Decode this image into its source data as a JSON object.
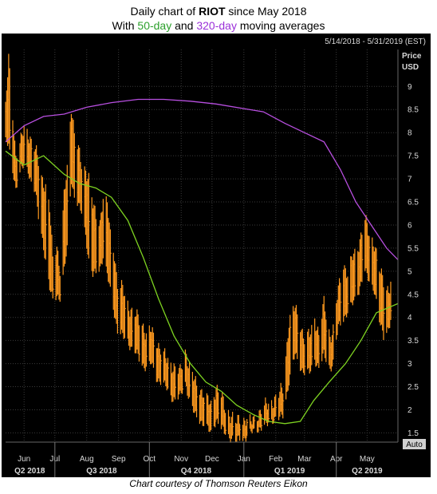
{
  "title": {
    "prefix": "Daily chart of ",
    "ticker": "RIOT",
    "suffix": " since May 2018",
    "line2_prefix": "With ",
    "ma_short": "50-day",
    "line2_mid": " and ",
    "ma_long": "320-day",
    "line2_suffix": " moving averages"
  },
  "header": {
    "date_range": "5/14/2018 - 5/31/2019 (EST)"
  },
  "axis": {
    "price_label": "Price",
    "currency_label": "USD",
    "auto_label": "Auto"
  },
  "credit": "Chart courtesy of Thomson Reuters Eikon",
  "colors": {
    "price": "#ff9a1f",
    "ma50": "#7ed321",
    "ma320": "#b84fe0",
    "background": "#000000",
    "grid": "#3a3a3a"
  },
  "chart_data": {
    "type": "line",
    "title": "Daily chart of RIOT since May 2018",
    "subtitle": "With 50-day and 320-day moving averages",
    "xlabel": "",
    "ylabel": "Price USD",
    "x_range": [
      "2018-05-14",
      "2019-05-31"
    ],
    "ylim": [
      1.3,
      9.8
    ],
    "y_ticks": [
      1.5,
      2,
      2.5,
      3,
      3.5,
      4,
      4.5,
      5,
      5.5,
      6,
      6.5,
      7,
      7.5,
      8,
      8.5,
      9
    ],
    "months": [
      {
        "label": "Jun",
        "date": "2018-06-01"
      },
      {
        "label": "Jul",
        "date": "2018-07-01"
      },
      {
        "label": "Aug",
        "date": "2018-08-01"
      },
      {
        "label": "Sep",
        "date": "2018-09-01"
      },
      {
        "label": "Oct",
        "date": "2018-10-01"
      },
      {
        "label": "Nov",
        "date": "2018-11-01"
      },
      {
        "label": "Dec",
        "date": "2018-12-01"
      },
      {
        "label": "Jan",
        "date": "2019-01-01"
      },
      {
        "label": "Feb",
        "date": "2019-02-01"
      },
      {
        "label": "Mar",
        "date": "2019-03-01"
      },
      {
        "label": "Apr",
        "date": "2019-04-01"
      },
      {
        "label": "May",
        "date": "2019-05-01"
      }
    ],
    "quarters": [
      {
        "label": "Q2 2018",
        "start": "2018-05-14",
        "end": "2018-06-30"
      },
      {
        "label": "Q3 2018",
        "start": "2018-07-01",
        "end": "2018-09-30"
      },
      {
        "label": "Q4 2018",
        "start": "2018-10-01",
        "end": "2018-12-31"
      },
      {
        "label": "Q1 2019",
        "start": "2019-01-01",
        "end": "2019-03-31"
      },
      {
        "label": "Q2 2019",
        "start": "2019-04-01",
        "end": "2019-05-31"
      }
    ],
    "grid": true,
    "series": [
      {
        "name": "RIOT",
        "style": "daily high-low bars",
        "x": [
          "2018-05-14",
          "2018-05-17",
          "2018-05-21",
          "2018-05-24",
          "2018-05-29",
          "2018-06-01",
          "2018-06-05",
          "2018-06-08",
          "2018-06-12",
          "2018-06-15",
          "2018-06-19",
          "2018-06-22",
          "2018-06-26",
          "2018-06-29",
          "2018-07-03",
          "2018-07-06",
          "2018-07-10",
          "2018-07-13",
          "2018-07-17",
          "2018-07-20",
          "2018-07-24",
          "2018-07-27",
          "2018-07-31",
          "2018-08-03",
          "2018-08-07",
          "2018-08-10",
          "2018-08-14",
          "2018-08-17",
          "2018-08-21",
          "2018-08-24",
          "2018-08-28",
          "2018-08-31",
          "2018-09-05",
          "2018-09-10",
          "2018-09-14",
          "2018-09-19",
          "2018-09-24",
          "2018-09-28",
          "2018-10-03",
          "2018-10-08",
          "2018-10-12",
          "2018-10-17",
          "2018-10-22",
          "2018-10-26",
          "2018-10-31",
          "2018-11-05",
          "2018-11-09",
          "2018-11-14",
          "2018-11-19",
          "2018-11-26",
          "2018-11-30",
          "2018-12-05",
          "2018-12-10",
          "2018-12-14",
          "2018-12-19",
          "2018-12-24",
          "2018-12-28",
          "2019-01-03",
          "2019-01-08",
          "2019-01-14",
          "2019-01-18",
          "2019-01-24",
          "2019-01-30",
          "2019-02-04",
          "2019-02-08",
          "2019-02-14",
          "2019-02-20",
          "2019-02-26",
          "2019-03-01",
          "2019-03-06",
          "2019-03-11",
          "2019-03-15",
          "2019-03-20",
          "2019-03-26",
          "2019-03-29",
          "2019-04-03",
          "2019-04-08",
          "2019-04-12",
          "2019-04-17",
          "2019-04-23",
          "2019-04-29",
          "2019-05-03",
          "2019-05-08",
          "2019-05-13",
          "2019-05-17",
          "2019-05-22",
          "2019-05-24"
        ],
        "high": [
          8.5,
          9.6,
          8.4,
          7.5,
          7.8,
          8.1,
          8.0,
          7.8,
          7.6,
          7.4,
          7.0,
          6.8,
          6.3,
          5.3,
          5.6,
          5.0,
          6.6,
          7.2,
          8.6,
          8.0,
          7.6,
          7.3,
          7.2,
          7.0,
          6.4,
          6.2,
          6.1,
          6.6,
          6.4,
          5.8,
          5.4,
          4.7,
          4.6,
          4.3,
          4.1,
          4.0,
          3.9,
          3.6,
          3.7,
          3.5,
          3.3,
          3.1,
          3.0,
          2.9,
          2.8,
          3.3,
          2.9,
          2.6,
          2.5,
          2.2,
          2.1,
          2.5,
          2.3,
          2.0,
          1.9,
          1.7,
          1.8,
          1.8,
          1.7,
          1.9,
          2.0,
          2.1,
          2.2,
          2.3,
          2.5,
          3.9,
          4.2,
          3.8,
          3.5,
          3.6,
          4.0,
          3.6,
          4.3,
          3.6,
          3.7,
          4.6,
          5.2,
          4.9,
          5.3,
          5.6,
          6.1,
          5.8,
          5.6,
          5.0,
          4.8,
          4.6,
          4.7
        ],
        "low": [
          7.8,
          7.7,
          7.2,
          6.8,
          7.2,
          7.3,
          7.2,
          6.9,
          6.7,
          6.2,
          5.7,
          5.2,
          4.6,
          4.4,
          4.5,
          4.4,
          5.0,
          5.5,
          7.0,
          6.6,
          6.4,
          6.3,
          5.8,
          5.2,
          4.9,
          5.0,
          5.1,
          5.3,
          4.9,
          4.6,
          4.1,
          3.7,
          3.6,
          3.5,
          3.3,
          3.2,
          3.0,
          2.9,
          3.0,
          2.7,
          2.6,
          2.5,
          2.3,
          2.2,
          2.3,
          2.6,
          2.2,
          1.9,
          1.8,
          1.6,
          1.5,
          1.8,
          1.6,
          1.5,
          1.4,
          1.3,
          1.4,
          1.4,
          1.5,
          1.6,
          1.6,
          1.7,
          1.8,
          1.8,
          1.9,
          2.6,
          3.2,
          2.9,
          2.8,
          2.8,
          3.1,
          2.9,
          3.2,
          2.9,
          3.0,
          3.8,
          4.0,
          4.1,
          4.3,
          4.6,
          5.0,
          4.8,
          4.6,
          3.9,
          3.6,
          3.8,
          3.9
        ]
      },
      {
        "name": "50-day",
        "x": [
          "2018-05-14",
          "2018-06-01",
          "2018-06-20",
          "2018-07-10",
          "2018-07-25",
          "2018-08-10",
          "2018-08-25",
          "2018-09-10",
          "2018-09-25",
          "2018-10-10",
          "2018-10-25",
          "2018-11-10",
          "2018-11-25",
          "2018-12-10",
          "2018-12-25",
          "2019-01-10",
          "2019-01-25",
          "2019-02-10",
          "2019-02-25",
          "2019-03-10",
          "2019-03-25",
          "2019-04-10",
          "2019-04-25",
          "2019-05-10",
          "2019-05-31"
        ],
        "values": [
          7.6,
          7.3,
          7.5,
          7.1,
          6.9,
          6.8,
          6.6,
          6.1,
          5.3,
          4.4,
          3.6,
          3.0,
          2.6,
          2.4,
          2.1,
          1.9,
          1.75,
          1.7,
          1.75,
          2.2,
          2.6,
          3.0,
          3.5,
          4.1,
          4.3
        ]
      },
      {
        "name": "320-day",
        "x": [
          "2018-05-14",
          "2018-06-01",
          "2018-06-20",
          "2018-07-10",
          "2018-08-01",
          "2018-08-25",
          "2018-09-20",
          "2018-10-15",
          "2018-11-10",
          "2018-12-05",
          "2019-01-01",
          "2019-01-20",
          "2019-02-10",
          "2019-03-01",
          "2019-03-20",
          "2019-04-05",
          "2019-04-20",
          "2019-05-05",
          "2019-05-20",
          "2019-05-31"
        ],
        "values": [
          7.8,
          8.15,
          8.35,
          8.4,
          8.55,
          8.65,
          8.72,
          8.72,
          8.68,
          8.62,
          8.52,
          8.45,
          8.2,
          8.0,
          7.8,
          7.2,
          6.5,
          6.0,
          5.5,
          5.25
        ]
      }
    ]
  }
}
